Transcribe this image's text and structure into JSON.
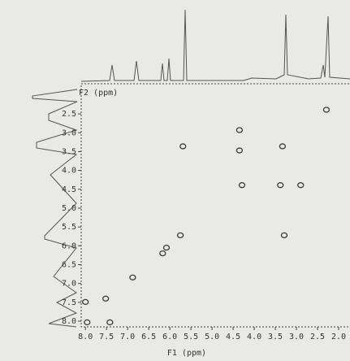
{
  "chart_data": {
    "type": "scatter",
    "x_label": "F1 (ppm)",
    "y_label": "F2 (ppm)",
    "color": "#3a3a3a",
    "xlim": [
      8.1,
      1.75
    ],
    "ylim": [
      1.7,
      8.15
    ],
    "xticks": [
      {
        "value": 8,
        "label": "8.0"
      },
      7.5,
      {
        "value": 7,
        "label": "7.0"
      },
      6.5,
      {
        "value": 6,
        "label": "6.0"
      },
      5.5,
      {
        "value": 5,
        "label": "5.0"
      },
      4.5,
      {
        "value": 4,
        "label": "4.0"
      },
      3.5,
      {
        "value": 3,
        "label": "3.0"
      },
      2.5,
      {
        "value": 2,
        "label": "2.0"
      }
    ],
    "yticks": [
      2.5,
      {
        "value": 3,
        "label": "3.0"
      },
      3.5,
      {
        "value": 4,
        "label": "4.0"
      },
      4.5,
      {
        "value": 5,
        "label": "5.0"
      },
      5.5,
      {
        "value": 6,
        "label": "6.0"
      },
      6.5,
      {
        "value": 7,
        "label": "7.0"
      },
      7.5,
      {
        "value": 8,
        "label": "8.0"
      }
    ],
    "x": [
      7.96,
      7.52,
      8.0,
      7.42,
      6.88,
      6.17,
      6.08,
      5.75,
      5.69,
      4.35,
      4.35,
      4.29,
      3.38,
      2.9,
      3.33,
      2.29,
      3.29
    ],
    "values": [
      8.03,
      7.4,
      7.49,
      8.03,
      6.84,
      6.2,
      6.05,
      5.72,
      3.36,
      2.93,
      3.47,
      4.39,
      4.39,
      4.39,
      3.36,
      2.39,
      5.72
    ]
  }
}
